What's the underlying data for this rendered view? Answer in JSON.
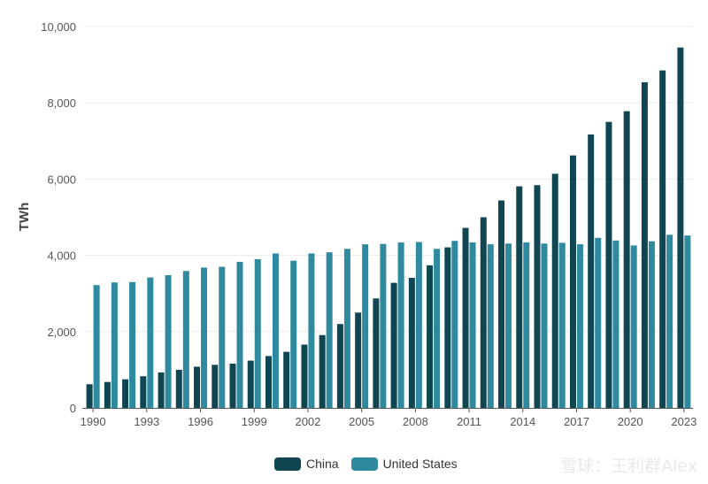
{
  "chart_data": {
    "type": "bar",
    "title": "",
    "xlabel": "",
    "ylabel": "TWh",
    "ylim": [
      0,
      10000
    ],
    "yticks": [
      0,
      2000,
      4000,
      6000,
      8000,
      10000
    ],
    "ytick_labels": [
      "0",
      "2,000",
      "4,000",
      "6,000",
      "8,000",
      "10,000"
    ],
    "xtick_labels": [
      "1990",
      "1993",
      "1996",
      "1999",
      "2002",
      "2005",
      "2008",
      "2011",
      "2014",
      "2017",
      "2020",
      "2023"
    ],
    "categories": [
      "1990",
      "1991",
      "1992",
      "1993",
      "1994",
      "1995",
      "1996",
      "1997",
      "1998",
      "1999",
      "2000",
      "2001",
      "2002",
      "2003",
      "2004",
      "2005",
      "2006",
      "2007",
      "2008",
      "2009",
      "2010",
      "2011",
      "2012",
      "2013",
      "2014",
      "2015",
      "2016",
      "2017",
      "2018",
      "2019",
      "2020",
      "2021",
      "2022",
      "2023"
    ],
    "series": [
      {
        "name": "China",
        "color": "#0f4651",
        "values": [
          620,
          680,
          750,
          830,
          930,
          1000,
          1080,
          1130,
          1160,
          1240,
          1360,
          1470,
          1660,
          1910,
          2200,
          2500,
          2870,
          3280,
          3410,
          3740,
          4210,
          4720,
          5000,
          5440,
          5810,
          5840,
          6140,
          6620,
          7170,
          7500,
          7780,
          8540,
          8850,
          9450
        ]
      },
      {
        "name": "United States",
        "color": "#2f8aa0",
        "values": [
          3220,
          3290,
          3300,
          3420,
          3480,
          3590,
          3680,
          3700,
          3830,
          3900,
          4050,
          3860,
          4050,
          4080,
          4170,
          4290,
          4300,
          4340,
          4350,
          4170,
          4380,
          4340,
          4290,
          4310,
          4340,
          4310,
          4330,
          4290,
          4460,
          4390,
          4260,
          4370,
          4540,
          4520
        ]
      }
    ],
    "legend_position": "bottom-center",
    "grid": true
  },
  "watermark": "雪球：王利群Alex"
}
